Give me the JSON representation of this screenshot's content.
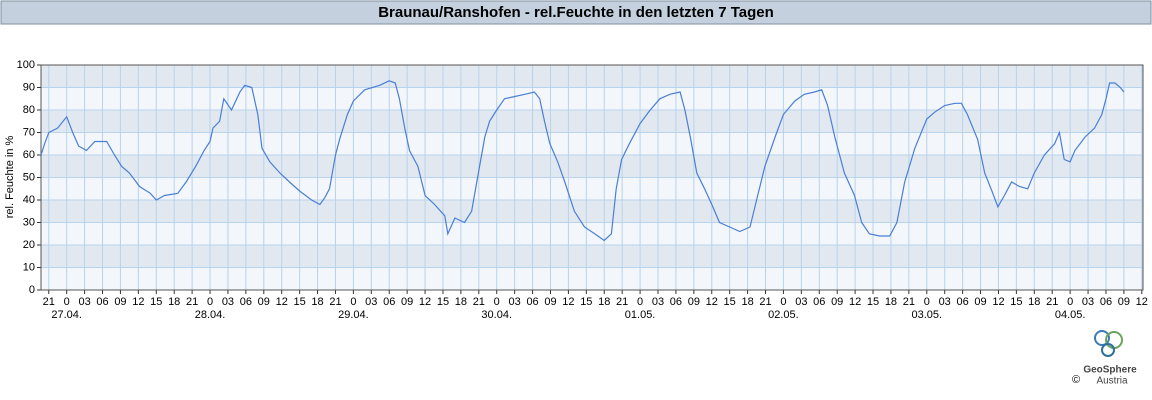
{
  "chart_data": {
    "type": "line",
    "title": "Braunau/Ranshofen - rel.Feuchte in den letzten 7 Tagen",
    "y_label": "rel. Feuchte in %",
    "x": [
      -4.3,
      -3.7,
      -3,
      -1.5,
      0,
      1,
      2,
      3.3,
      4.7,
      6.7,
      8,
      9.2,
      10.5,
      12.2,
      14,
      15,
      16.4,
      18.6,
      20,
      21.6,
      23,
      24,
      24.5,
      25.6,
      26.3,
      27.6,
      29,
      29.8,
      31,
      32,
      32.7,
      34,
      35.7,
      37.3,
      39,
      41,
      42.4,
      43.2,
      44,
      45,
      45.7,
      47,
      48,
      49.9,
      52.4,
      54,
      55,
      55.7,
      56.6,
      57.4,
      58.8,
      60,
      61.6,
      63.3,
      63.8,
      65,
      66.6,
      67.8,
      68.8,
      70,
      70.8,
      72,
      73.3,
      75,
      76.7,
      78.3,
      79.2,
      80,
      80.9,
      82.2,
      83.4,
      85,
      86.7,
      88.4,
      90,
      91.2,
      92,
      92.9,
      94.2,
      96,
      97.7,
      99.3,
      101,
      102.7,
      103.5,
      104.4,
      105.5,
      106.8,
      108,
      109.3,
      111,
      112.7,
      114.4,
      115.5,
      116.9,
      118.6,
      120,
      121.9,
      123.5,
      125.2,
      126.4,
      127.4,
      128.6,
      130.2,
      131.9,
      133.1,
      134.4,
      136.1,
      137.8,
      139,
      140.3,
      142,
      144,
      145.3,
      147,
      148.7,
      149.8,
      150.8,
      152.5,
      153.7,
      154.9,
      155.9,
      157,
      158.2,
      159.5,
      160.9,
      162,
      163.7,
      165.4,
      166.2,
      167,
      168,
      168.8,
      170.5,
      172.1,
      173.3,
      174,
      174.6,
      175.5,
      176.4,
      177
    ],
    "series": [
      {
        "color": "#4a7fd6",
        "values": [
          60,
          65,
          70,
          72,
          77,
          70,
          64,
          62,
          66,
          66,
          60,
          55,
          52,
          46,
          43,
          40,
          42,
          43,
          48,
          55,
          62,
          66,
          72,
          75,
          85,
          80,
          88,
          91,
          90,
          78,
          63,
          57,
          52,
          48,
          44,
          40,
          38,
          41,
          45,
          60,
          67,
          78,
          84,
          89,
          91,
          93,
          92,
          85,
          72,
          62,
          55,
          42,
          38,
          33,
          25,
          32,
          30,
          35,
          50,
          68,
          75,
          80,
          85,
          86,
          87,
          88,
          85,
          75,
          65,
          57,
          48,
          35,
          28,
          25,
          22,
          25,
          45,
          58,
          65,
          74,
          80,
          85,
          87,
          88,
          80,
          68,
          52,
          45,
          38,
          30,
          28,
          26,
          28,
          40,
          55,
          68,
          78,
          84,
          87,
          88,
          89,
          82,
          68,
          52,
          42,
          30,
          25,
          24,
          24,
          30,
          48,
          63,
          76,
          79,
          82,
          83,
          83,
          78,
          67,
          52,
          44,
          37,
          42,
          48,
          46,
          45,
          52,
          60,
          65,
          70,
          58,
          57,
          62,
          68,
          72,
          78,
          85,
          92,
          92,
          90,
          88
        ]
      }
    ],
    "xlim": [
      -4.3,
      180.2
    ],
    "ylim": [
      0,
      100
    ],
    "yticks": [
      0,
      10,
      20,
      30,
      40,
      50,
      60,
      70,
      80,
      90,
      100
    ],
    "xticks": [
      {
        "value": -3,
        "label": "21"
      },
      {
        "value": 0,
        "label": "0"
      },
      {
        "value": 3,
        "label": "03"
      },
      {
        "value": 6,
        "label": "06"
      },
      {
        "value": 9,
        "label": "09"
      },
      {
        "value": 12,
        "label": "12"
      },
      {
        "value": 15,
        "label": "15"
      },
      {
        "value": 18,
        "label": "18"
      },
      {
        "value": 21,
        "label": "21"
      },
      {
        "value": 24,
        "label": "0"
      },
      {
        "value": 27,
        "label": "03"
      },
      {
        "value": 30,
        "label": "06"
      },
      {
        "value": 33,
        "label": "09"
      },
      {
        "value": 36,
        "label": "12"
      },
      {
        "value": 39,
        "label": "15"
      },
      {
        "value": 42,
        "label": "18"
      },
      {
        "value": 45,
        "label": "21"
      },
      {
        "value": 48,
        "label": "0"
      },
      {
        "value": 51,
        "label": "03"
      },
      {
        "value": 54,
        "label": "06"
      },
      {
        "value": 57,
        "label": "09"
      },
      {
        "value": 60,
        "label": "12"
      },
      {
        "value": 63,
        "label": "15"
      },
      {
        "value": 66,
        "label": "18"
      },
      {
        "value": 69,
        "label": "21"
      },
      {
        "value": 72,
        "label": "0"
      },
      {
        "value": 75,
        "label": "03"
      },
      {
        "value": 78,
        "label": "06"
      },
      {
        "value": 81,
        "label": "09"
      },
      {
        "value": 84,
        "label": "12"
      },
      {
        "value": 87,
        "label": "15"
      },
      {
        "value": 90,
        "label": "18"
      },
      {
        "value": 93,
        "label": "21"
      },
      {
        "value": 96,
        "label": "0"
      },
      {
        "value": 99,
        "label": "03"
      },
      {
        "value": 102,
        "label": "06"
      },
      {
        "value": 105,
        "label": "09"
      },
      {
        "value": 108,
        "label": "12"
      },
      {
        "value": 111,
        "label": "15"
      },
      {
        "value": 114,
        "label": "18"
      },
      {
        "value": 117,
        "label": "21"
      },
      {
        "value": 120,
        "label": "0"
      },
      {
        "value": 123,
        "label": "03"
      },
      {
        "value": 126,
        "label": "06"
      },
      {
        "value": 129,
        "label": "09"
      },
      {
        "value": 132,
        "label": "12"
      },
      {
        "value": 135,
        "label": "15"
      },
      {
        "value": 138,
        "label": "18"
      },
      {
        "value": 141,
        "label": "21"
      },
      {
        "value": 144,
        "label": "0"
      },
      {
        "value": 147,
        "label": "03"
      },
      {
        "value": 150,
        "label": "06"
      },
      {
        "value": 153,
        "label": "09"
      },
      {
        "value": 156,
        "label": "12"
      },
      {
        "value": 159,
        "label": "15"
      },
      {
        "value": 162,
        "label": "18"
      },
      {
        "value": 165,
        "label": "21"
      },
      {
        "value": 168,
        "label": "0"
      },
      {
        "value": 171,
        "label": "03"
      },
      {
        "value": 174,
        "label": "06"
      },
      {
        "value": 177,
        "label": "09"
      },
      {
        "value": 180,
        "label": "12"
      }
    ],
    "date_labels": [
      {
        "value": 0,
        "label": "27.04."
      },
      {
        "value": 24,
        "label": "28.04."
      },
      {
        "value": 48,
        "label": "29.04."
      },
      {
        "value": 72,
        "label": "30.04."
      },
      {
        "value": 96,
        "label": "01.05."
      },
      {
        "value": 120,
        "label": "02.05."
      },
      {
        "value": 144,
        "label": "03.05."
      },
      {
        "value": 168,
        "label": "04.05."
      }
    ],
    "grid": true
  },
  "logo": {
    "name": "GeoSphere",
    "sub": "Austria",
    "copyright": "©"
  }
}
